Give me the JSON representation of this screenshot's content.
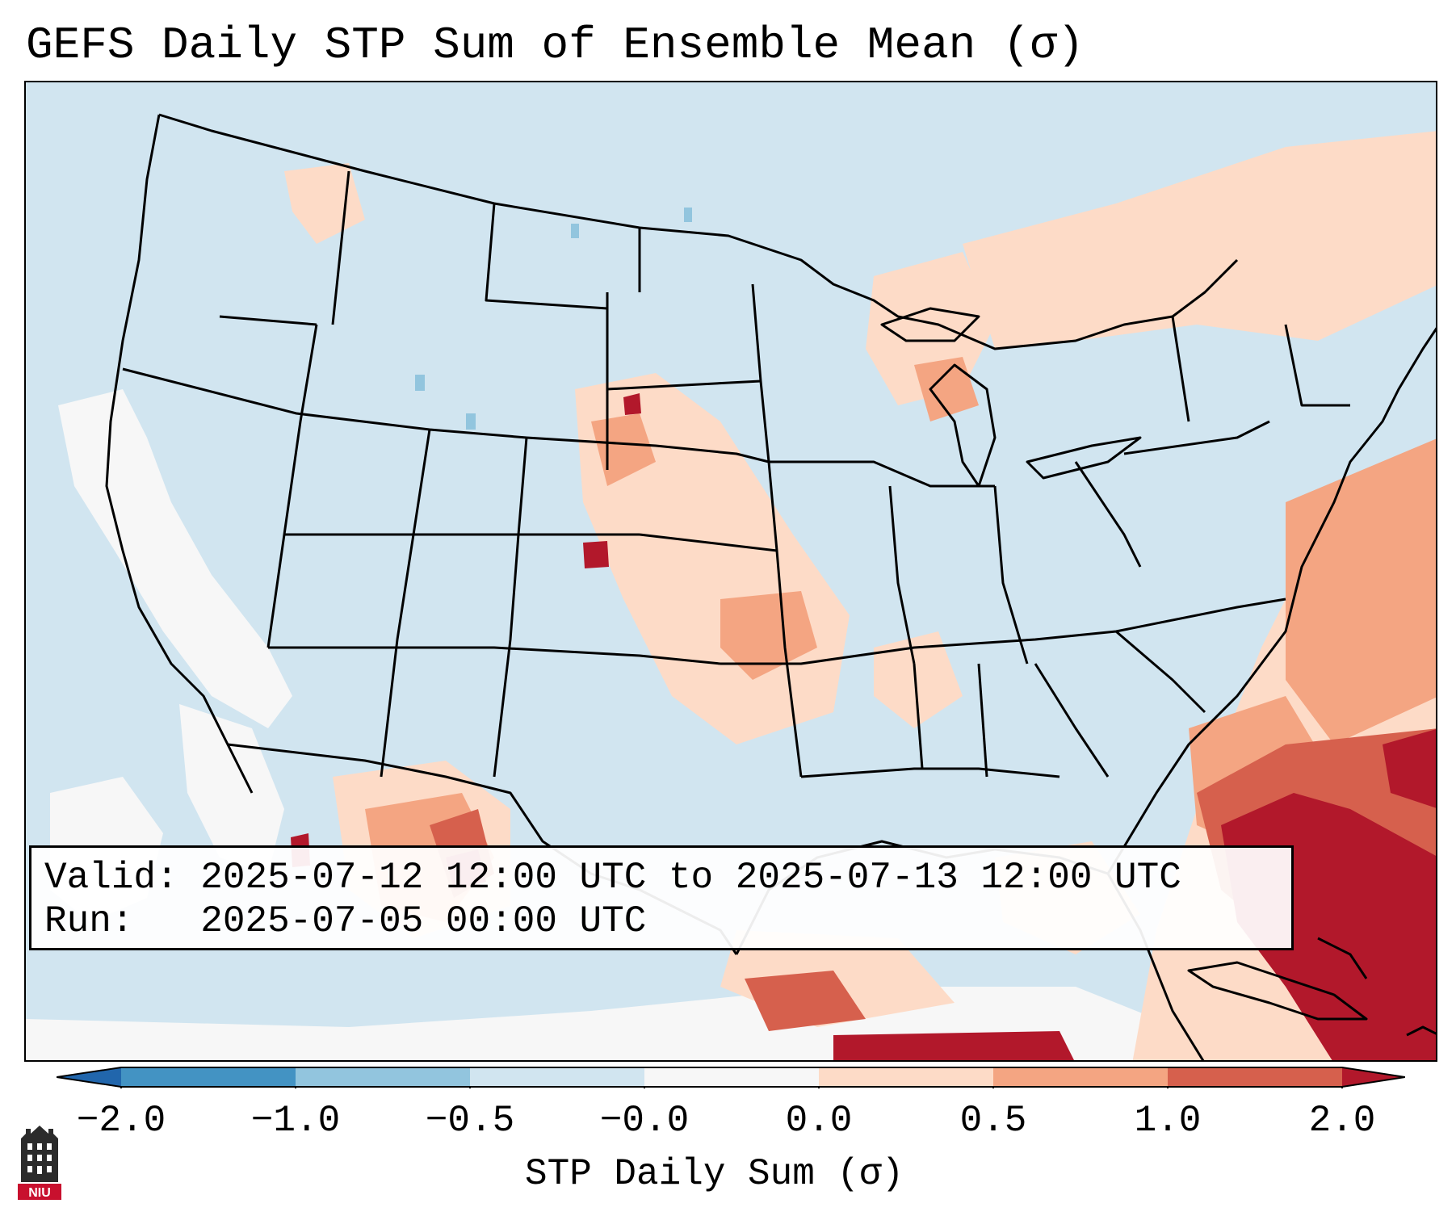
{
  "title": "GEFS Daily STP Sum of Ensemble Mean (σ)",
  "info_box": {
    "valid_label": "Valid:",
    "valid_value": "2025-07-12 12:00 UTC to 2025-07-13 12:00 UTC",
    "run_label": "Run:",
    "run_value": "2025-07-05 00:00 UTC"
  },
  "colorbar": {
    "label": "STP Daily Sum (σ)",
    "ticks": [
      "−2.0",
      "−1.0",
      "−0.5",
      "−0.0",
      "0.0",
      "0.5",
      "1.0",
      "2.0"
    ],
    "bins": [
      {
        "range": "< -2.0",
        "color": "#2166ac"
      },
      {
        "range": "-2.0 to -1.0",
        "color": "#4393c3"
      },
      {
        "range": "-1.0 to -0.5",
        "color": "#92c5de"
      },
      {
        "range": "-0.5 to -0.0",
        "color": "#d1e5f0"
      },
      {
        "range": "-0.0 to 0.0",
        "color": "#f7f7f7"
      },
      {
        "range": "0.0 to 0.5",
        "color": "#fddbc7"
      },
      {
        "range": "0.5 to 1.0",
        "color": "#f4a582"
      },
      {
        "range": "1.0 to 2.0",
        "color": "#d6604d"
      },
      {
        "range": "> 2.0",
        "color": "#b2182b"
      }
    ]
  },
  "map": {
    "region": "Continental United States",
    "background_color": "#d1e5f0",
    "anomaly_regions": [
      {
        "area": "Southeast US coast / western Atlantic",
        "level": "> 2.0"
      },
      {
        "area": "Florida / Bahamas",
        "level": "> 2.0"
      },
      {
        "area": "Northern Mexico (Sierra Madre)",
        "level": "1.0 to 2.0"
      },
      {
        "area": "Mid-Atlantic offshore",
        "level": "0.5 to 1.0"
      },
      {
        "area": "Central and Northern Plains",
        "level": "0.0 to 0.5"
      },
      {
        "area": "Great Lakes / Northeast",
        "level": "0.0 to 0.5"
      },
      {
        "area": "Pacific off California / Baja",
        "level": "-0.0 to 0.0"
      }
    ]
  },
  "logo": {
    "text": "NIU"
  }
}
